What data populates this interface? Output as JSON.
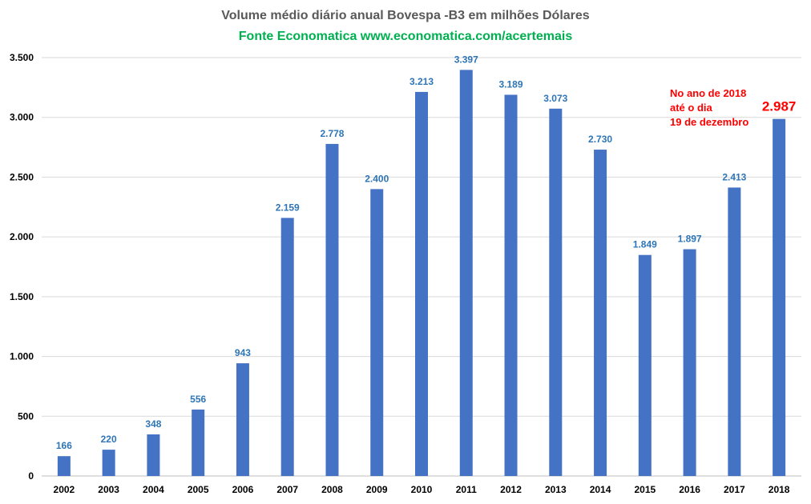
{
  "title": "Volume médio diário anual  Bovespa -B3 em milhões Dólares",
  "subtitle": "Fonte Economatica www.economatica.com/acertemais",
  "annotation": [
    "No ano de 2018",
    "até o dia",
    "19 de dezembro"
  ],
  "colors": {
    "bar": "#4472c4",
    "data_label": "#2e75b6",
    "highlight": "#ff0000",
    "title": "#595959",
    "subtitle": "#00b050",
    "gridline": "#d9d9d9"
  },
  "chart_data": {
    "type": "bar",
    "categories": [
      "2002",
      "2003",
      "2004",
      "2005",
      "2006",
      "2007",
      "2008",
      "2009",
      "2010",
      "2011",
      "2012",
      "2013",
      "2014",
      "2015",
      "2016",
      "2017",
      "2018"
    ],
    "values": [
      166,
      220,
      348,
      556,
      943,
      2159,
      2778,
      2400,
      3213,
      3397,
      3189,
      3073,
      2730,
      1849,
      1897,
      2413,
      2987
    ],
    "labels": [
      "166",
      "220",
      "348",
      "556",
      "943",
      "2.159",
      "2.778",
      "2.400",
      "3.213",
      "3.397",
      "3.189",
      "3.073",
      "2.730",
      "1.849",
      "1.897",
      "2.413",
      "2.987"
    ],
    "highlight_index": 16,
    "ylim": [
      0,
      3500
    ],
    "yticks": [
      0,
      500,
      1000,
      1500,
      2000,
      2500,
      3000,
      3500
    ],
    "ytick_labels": [
      "0",
      "500",
      "1.000",
      "1.500",
      "2.000",
      "2.500",
      "3.000",
      "3.500"
    ],
    "grid": true,
    "legend": "none",
    "xlabel": "",
    "ylabel": ""
  }
}
